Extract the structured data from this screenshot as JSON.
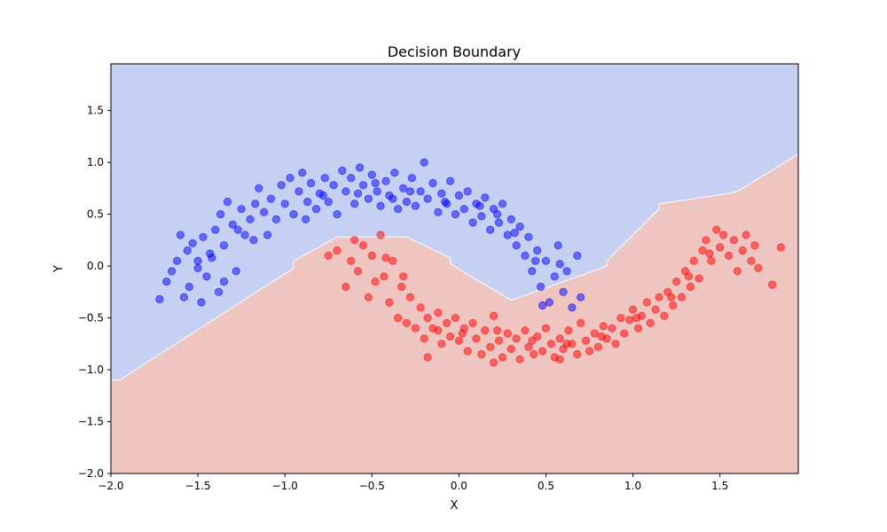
{
  "chart_data": {
    "type": "scatter",
    "title": "Decision Boundary",
    "xlabel": "X",
    "ylabel": "Y",
    "xlim": [
      -2.0,
      1.95
    ],
    "ylim": [
      -2.0,
      1.95
    ],
    "xticks": [
      -2.0,
      -1.5,
      -1.0,
      -0.5,
      0.0,
      0.5,
      1.0,
      1.5
    ],
    "xtick_labels": [
      "−2.0",
      "−1.5",
      "−1.0",
      "−0.5",
      "0.0",
      "0.5",
      "1.0",
      "1.5"
    ],
    "yticks": [
      -2.0,
      -1.5,
      -1.0,
      -0.5,
      0.0,
      0.5,
      1.0,
      1.5
    ],
    "ytick_labels": [
      "−2.0",
      "−1.5",
      "−1.0",
      "−0.5",
      "0.0",
      "0.5",
      "1.0",
      "1.5"
    ],
    "grid": false,
    "legend": "none",
    "regions": [
      {
        "class": 0,
        "color": "#c6d0f2"
      },
      {
        "class": 1,
        "color": "#efc5c2"
      }
    ],
    "boundary": {
      "x": [
        -2.0,
        -1.95,
        -0.95,
        -0.95,
        -0.7,
        -0.3,
        -0.05,
        -0.05,
        0.3,
        0.85,
        0.85,
        1.15,
        1.15,
        1.55,
        1.6,
        1.95
      ],
      "y": [
        -1.1,
        -1.1,
        -0.02,
        0.05,
        0.28,
        0.28,
        0.08,
        0.02,
        -0.33,
        0.0,
        0.05,
        0.55,
        0.6,
        0.7,
        0.72,
        1.08
      ]
    },
    "series": [
      {
        "color": "#0000ff",
        "points": [
          [
            -1.72,
            -0.32
          ],
          [
            -1.68,
            -0.15
          ],
          [
            -1.65,
            -0.05
          ],
          [
            -1.62,
            0.05
          ],
          [
            -1.6,
            0.3
          ],
          [
            -1.58,
            -0.3
          ],
          [
            -1.56,
            0.15
          ],
          [
            -1.55,
            -0.2
          ],
          [
            -1.53,
            0.22
          ],
          [
            -1.5,
            0.05
          ],
          [
            -1.48,
            -0.35
          ],
          [
            -1.47,
            0.28
          ],
          [
            -1.45,
            -0.1
          ],
          [
            -1.43,
            0.12
          ],
          [
            -1.4,
            0.35
          ],
          [
            -1.38,
            -0.25
          ],
          [
            -1.37,
            0.5
          ],
          [
            -1.35,
            0.2
          ],
          [
            -1.33,
            0.62
          ],
          [
            -1.3,
            0.4
          ],
          [
            -1.28,
            -0.05
          ],
          [
            -1.25,
            0.55
          ],
          [
            -1.23,
            0.3
          ],
          [
            -1.2,
            0.45
          ],
          [
            -1.17,
            0.6
          ],
          [
            -1.15,
            0.75
          ],
          [
            -1.12,
            0.52
          ],
          [
            -1.1,
            0.3
          ],
          [
            -1.08,
            0.65
          ],
          [
            -1.05,
            0.45
          ],
          [
            -1.02,
            0.78
          ],
          [
            -1.0,
            0.6
          ],
          [
            -0.97,
            0.85
          ],
          [
            -0.95,
            0.5
          ],
          [
            -0.92,
            0.72
          ],
          [
            -0.9,
            0.9
          ],
          [
            -0.87,
            0.62
          ],
          [
            -0.85,
            0.8
          ],
          [
            -0.82,
            0.55
          ],
          [
            -0.8,
            0.7
          ],
          [
            -0.77,
            0.85
          ],
          [
            -0.75,
            0.62
          ],
          [
            -0.72,
            0.78
          ],
          [
            -0.7,
            0.5
          ],
          [
            -0.67,
            0.92
          ],
          [
            -0.65,
            0.72
          ],
          [
            -0.62,
            0.85
          ],
          [
            -0.6,
            0.6
          ],
          [
            -0.57,
            0.95
          ],
          [
            -0.55,
            0.78
          ],
          [
            -0.52,
            0.65
          ],
          [
            -0.5,
            0.88
          ],
          [
            -0.47,
            0.72
          ],
          [
            -0.45,
            0.58
          ],
          [
            -0.42,
            0.82
          ],
          [
            -0.4,
            0.68
          ],
          [
            -0.37,
            0.9
          ],
          [
            -0.35,
            0.55
          ],
          [
            -0.32,
            0.75
          ],
          [
            -0.3,
            0.62
          ],
          [
            -0.27,
            0.85
          ],
          [
            -0.25,
            0.58
          ],
          [
            -0.22,
            0.72
          ],
          [
            -0.2,
            1.0
          ],
          [
            -0.18,
            0.65
          ],
          [
            -0.15,
            0.8
          ],
          [
            -0.12,
            0.52
          ],
          [
            -0.1,
            0.7
          ],
          [
            -0.07,
            0.6
          ],
          [
            -0.05,
            0.82
          ],
          [
            -0.02,
            0.5
          ],
          [
            0.0,
            0.68
          ],
          [
            0.03,
            0.55
          ],
          [
            0.05,
            0.72
          ],
          [
            0.08,
            0.42
          ],
          [
            0.1,
            0.6
          ],
          [
            0.13,
            0.48
          ],
          [
            0.15,
            0.66
          ],
          [
            0.18,
            0.35
          ],
          [
            0.2,
            0.55
          ],
          [
            0.23,
            0.42
          ],
          [
            0.25,
            0.6
          ],
          [
            0.28,
            0.3
          ],
          [
            0.3,
            0.45
          ],
          [
            0.33,
            0.2
          ],
          [
            0.35,
            0.38
          ],
          [
            0.38,
            0.1
          ],
          [
            0.4,
            0.28
          ],
          [
            0.42,
            -0.05
          ],
          [
            0.45,
            0.15
          ],
          [
            0.47,
            -0.2
          ],
          [
            0.5,
            0.05
          ],
          [
            0.52,
            -0.35
          ],
          [
            0.55,
            -0.1
          ],
          [
            0.57,
            0.2
          ],
          [
            0.6,
            -0.25
          ],
          [
            0.62,
            -0.05
          ],
          [
            0.65,
            -0.4
          ],
          [
            0.68,
            0.1
          ],
          [
            0.7,
            -0.3
          ],
          [
            -1.5,
            -0.02
          ],
          [
            -1.42,
            0.08
          ],
          [
            -1.35,
            -0.15
          ],
          [
            -1.27,
            0.35
          ],
          [
            -1.18,
            0.25
          ],
          [
            -0.88,
            0.45
          ],
          [
            -0.78,
            0.68
          ],
          [
            -0.58,
            0.7
          ],
          [
            -0.48,
            0.8
          ],
          [
            -0.38,
            0.65
          ],
          [
            -0.28,
            0.72
          ],
          [
            -0.08,
            0.62
          ],
          [
            0.12,
            0.58
          ],
          [
            0.22,
            0.5
          ],
          [
            0.32,
            0.32
          ],
          [
            0.44,
            0.05
          ],
          [
            0.58,
            0.02
          ],
          [
            0.48,
            -0.38
          ]
        ]
      },
      {
        "color": "#ff0000",
        "points": [
          [
            -0.75,
            0.1
          ],
          [
            -0.7,
            0.15
          ],
          [
            -0.65,
            -0.2
          ],
          [
            -0.62,
            0.05
          ],
          [
            -0.6,
            0.25
          ],
          [
            -0.58,
            -0.05
          ],
          [
            -0.55,
            0.2
          ],
          [
            -0.52,
            -0.3
          ],
          [
            -0.5,
            0.1
          ],
          [
            -0.48,
            -0.15
          ],
          [
            -0.45,
            0.3
          ],
          [
            -0.43,
            -0.1
          ],
          [
            -0.4,
            -0.35
          ],
          [
            -0.38,
            0.05
          ],
          [
            -0.35,
            -0.5
          ],
          [
            -0.33,
            -0.2
          ],
          [
            -0.3,
            -0.55
          ],
          [
            -0.28,
            -0.3
          ],
          [
            -0.25,
            -0.6
          ],
          [
            -0.22,
            -0.4
          ],
          [
            -0.2,
            -0.7
          ],
          [
            -0.18,
            -0.5
          ],
          [
            -0.15,
            -0.6
          ],
          [
            -0.12,
            -0.45
          ],
          [
            -0.1,
            -0.75
          ],
          [
            -0.07,
            -0.55
          ],
          [
            -0.05,
            -0.68
          ],
          [
            -0.02,
            -0.5
          ],
          [
            0.0,
            -0.72
          ],
          [
            0.03,
            -0.6
          ],
          [
            0.05,
            -0.82
          ],
          [
            0.08,
            -0.55
          ],
          [
            0.1,
            -0.7
          ],
          [
            0.13,
            -0.85
          ],
          [
            0.15,
            -0.62
          ],
          [
            0.18,
            -0.78
          ],
          [
            0.2,
            -0.48
          ],
          [
            0.23,
            -0.72
          ],
          [
            0.25,
            -0.88
          ],
          [
            0.28,
            -0.65
          ],
          [
            0.3,
            -0.8
          ],
          [
            0.33,
            -0.7
          ],
          [
            0.35,
            -0.9
          ],
          [
            0.38,
            -0.62
          ],
          [
            0.4,
            -0.78
          ],
          [
            0.43,
            -0.85
          ],
          [
            0.45,
            -0.68
          ],
          [
            0.48,
            -0.82
          ],
          [
            0.5,
            -0.6
          ],
          [
            0.53,
            -0.75
          ],
          [
            0.55,
            -0.88
          ],
          [
            0.58,
            -0.7
          ],
          [
            0.6,
            -0.8
          ],
          [
            0.63,
            -0.62
          ],
          [
            0.65,
            -0.75
          ],
          [
            0.68,
            -0.85
          ],
          [
            0.7,
            -0.55
          ],
          [
            0.73,
            -0.72
          ],
          [
            0.75,
            -0.82
          ],
          [
            0.78,
            -0.65
          ],
          [
            0.8,
            -0.78
          ],
          [
            0.83,
            -0.58
          ],
          [
            0.85,
            -0.7
          ],
          [
            0.88,
            -0.6
          ],
          [
            0.9,
            -0.75
          ],
          [
            0.93,
            -0.5
          ],
          [
            0.95,
            -0.65
          ],
          [
            0.98,
            -0.52
          ],
          [
            1.0,
            -0.42
          ],
          [
            1.03,
            -0.6
          ],
          [
            1.05,
            -0.48
          ],
          [
            1.08,
            -0.35
          ],
          [
            1.1,
            -0.55
          ],
          [
            1.13,
            -0.42
          ],
          [
            1.15,
            -0.3
          ],
          [
            1.18,
            -0.48
          ],
          [
            1.2,
            -0.25
          ],
          [
            1.23,
            -0.38
          ],
          [
            1.25,
            -0.15
          ],
          [
            1.28,
            -0.3
          ],
          [
            1.3,
            -0.05
          ],
          [
            1.33,
            -0.2
          ],
          [
            1.35,
            0.05
          ],
          [
            1.38,
            -0.12
          ],
          [
            1.4,
            0.15
          ],
          [
            1.42,
            0.25
          ],
          [
            1.45,
            0.05
          ],
          [
            1.48,
            0.35
          ],
          [
            1.5,
            0.18
          ],
          [
            1.52,
            0.3
          ],
          [
            1.55,
            0.1
          ],
          [
            1.58,
            0.25
          ],
          [
            1.6,
            -0.05
          ],
          [
            1.63,
            0.15
          ],
          [
            1.65,
            0.3
          ],
          [
            1.68,
            0.05
          ],
          [
            1.7,
            0.2
          ],
          [
            1.72,
            -0.02
          ],
          [
            1.8,
            -0.18
          ],
          [
            1.85,
            0.18
          ],
          [
            -0.42,
            0.08
          ],
          [
            -0.32,
            -0.1
          ],
          [
            -0.12,
            -0.62
          ],
          [
            0.02,
            -0.65
          ],
          [
            0.22,
            -0.62
          ],
          [
            0.42,
            -0.72
          ],
          [
            0.62,
            -0.75
          ],
          [
            0.82,
            -0.68
          ],
          [
            1.02,
            -0.5
          ],
          [
            1.22,
            -0.3
          ],
          [
            1.32,
            -0.1
          ],
          [
            1.44,
            0.12
          ],
          [
            -0.18,
            -0.88
          ],
          [
            0.2,
            -0.93
          ],
          [
            0.58,
            -0.9
          ]
        ]
      }
    ]
  }
}
